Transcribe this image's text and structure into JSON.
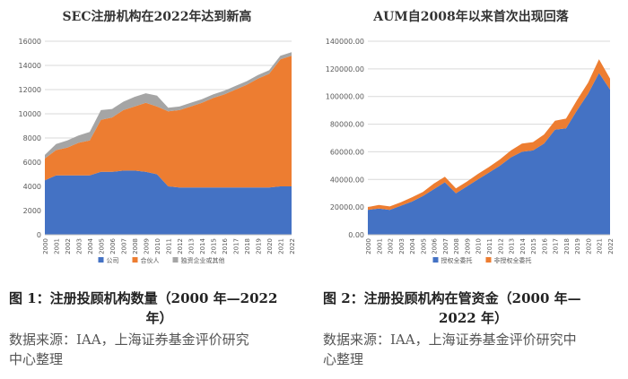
{
  "colors": {
    "blue": "#4472C4",
    "orange": "#ED7D31",
    "gray": "#A5A5A5"
  },
  "chart_data": [
    {
      "type": "area",
      "stacked": true,
      "title": "SEC注册机构在2022年达到新高",
      "x": [
        "2000",
        "2001",
        "2002",
        "2003",
        "2004",
        "2005",
        "2006",
        "2007",
        "2008",
        "2009",
        "2010",
        "2011",
        "2012",
        "2013",
        "2014",
        "2015",
        "2016",
        "2017",
        "2018",
        "2019",
        "2020",
        "2021",
        "2022"
      ],
      "ylim": [
        0,
        16000
      ],
      "yticks": [
        "0",
        "2000",
        "4000",
        "6000",
        "8000",
        "10000",
        "12000",
        "14000",
        "16000"
      ],
      "legend_position": "bottom",
      "series": [
        {
          "name": "公司",
          "values": [
            4500,
            4900,
            4900,
            4900,
            4900,
            5200,
            5200,
            5300,
            5300,
            5200,
            5000,
            4000,
            3900,
            3900,
            3900,
            3900,
            3900,
            3900,
            3900,
            3900,
            3900,
            4000,
            4000
          ]
        },
        {
          "name": "合伙人",
          "values": [
            1800,
            2100,
            2300,
            2700,
            2900,
            4300,
            4500,
            5000,
            5300,
            5700,
            5600,
            6200,
            6400,
            6700,
            7000,
            7400,
            7700,
            8100,
            8500,
            9000,
            9400,
            10500,
            10800
          ]
        },
        {
          "name": "独资企业或其他",
          "values": [
            300,
            500,
            600,
            600,
            700,
            800,
            700,
            700,
            800,
            800,
            900,
            300,
            300,
            300,
            300,
            300,
            300,
            300,
            300,
            300,
            300,
            300,
            300
          ]
        }
      ]
    },
    {
      "type": "area",
      "stacked": true,
      "title": "AUM自2008年以来首次出现回落",
      "x": [
        "2000",
        "2001",
        "2002",
        "2003",
        "2004",
        "2005",
        "2006",
        "2007",
        "2008",
        "2009",
        "2010",
        "2011",
        "2012",
        "2013",
        "2014",
        "2015",
        "2016",
        "2017",
        "2018",
        "2019",
        "2020",
        "2021",
        "2022"
      ],
      "ylim": [
        0,
        140000
      ],
      "yticks": [
        "0.00",
        "20000.00",
        "40000.00",
        "60000.00",
        "80000.00",
        "100000.00",
        "120000.00",
        "140000.00"
      ],
      "legend_position": "bottom",
      "series": [
        {
          "name": "授权全委托",
          "values": [
            18000,
            19000,
            18000,
            21000,
            24000,
            28000,
            33000,
            38000,
            30000,
            35000,
            40000,
            45000,
            50000,
            56000,
            60000,
            61000,
            66000,
            76000,
            77000,
            90000,
            102000,
            117000,
            105000
          ]
        },
        {
          "name": "非授权全委托",
          "values": [
            2000,
            2500,
            2500,
            2500,
            3000,
            3000,
            4000,
            4000,
            3500,
            3500,
            4000,
            4000,
            4500,
            5000,
            6000,
            6000,
            6500,
            6500,
            7000,
            7500,
            8000,
            10000,
            8000
          ]
        }
      ]
    }
  ],
  "captions": {
    "fig1": [
      "图 1：注册投顾机构数量（2000 年—2022",
      "年）"
    ],
    "fig2": [
      "图 2：注册投顾机构在管资金（2000 年—",
      "2022 年）"
    ],
    "source1": [
      "数据来源：IAA，上海证券基金评价研究",
      "中心整理"
    ],
    "source2": [
      "数据来源：IAA，上海证券基金评价研究中",
      "心整理"
    ]
  }
}
